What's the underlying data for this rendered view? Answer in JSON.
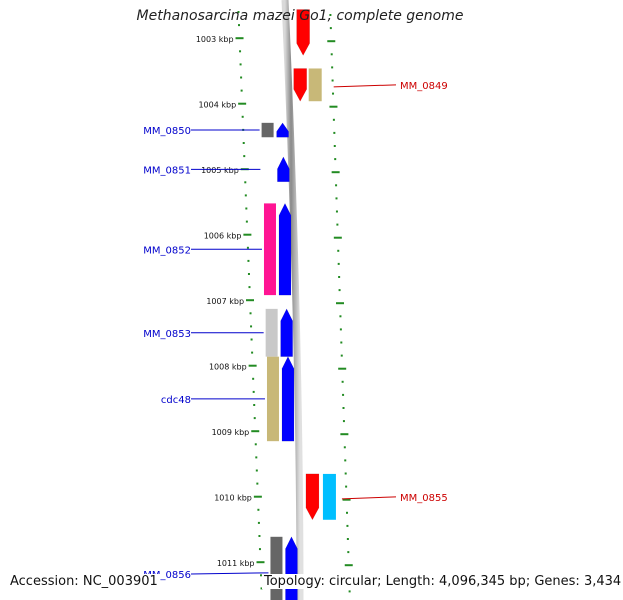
{
  "title": "Methanosarcina mazei Go1, complete genome",
  "footer": {
    "accession_label": "Accession:",
    "accession": "NC_003901",
    "topology_label": "Topology:",
    "topology": "circular",
    "length_label": "Length:",
    "length": "4,096,345 bp",
    "genes_label": "Genes:",
    "genes": "3,434"
  },
  "colors": {
    "forward_orf": "#0000ff",
    "reverse_orf": "#ff0000",
    "reverse_orf_alt": "#00bfff",
    "forward_label": "#0000cc",
    "reverse_label": "#cc0000",
    "tick": "#228b22",
    "backbone": "#8c8c8c",
    "gene_grey": "#666666",
    "gene_pink": "#ff1493",
    "gene_lightgrey": "#c8c8c8",
    "gene_khaki": "#c8b878"
  },
  "ruler": {
    "unit": "kbp",
    "labels": [
      {
        "kbp": 1003,
        "text": "1003 kbp"
      },
      {
        "kbp": 1004,
        "text": "1004 kbp"
      },
      {
        "kbp": 1005,
        "text": "1005 kbp"
      },
      {
        "kbp": 1006,
        "text": "1006 kbp"
      },
      {
        "kbp": 1007,
        "text": "1007 kbp"
      },
      {
        "kbp": 1008,
        "text": "1008 kbp"
      },
      {
        "kbp": 1009,
        "text": "1009 kbp"
      },
      {
        "kbp": 1010,
        "text": "1010 kbp"
      },
      {
        "kbp": 1011,
        "text": "1011 kbp"
      }
    ]
  },
  "genes": [
    {
      "name": "MM_0849",
      "strand": "-",
      "start": 1002.55,
      "end": 1003.25,
      "lane_color": "reverse_orf",
      "gene_color": null,
      "labeled": false
    },
    {
      "name": "MM_0849",
      "strand": "-",
      "start": 1003.45,
      "end": 1003.95,
      "lane_color": "reverse_orf",
      "gene_color": "gene_khaki",
      "labeled": true
    },
    {
      "name": "MM_0850",
      "strand": "+",
      "start": 1004.28,
      "end": 1004.5,
      "lane_color": "forward_orf",
      "gene_color": "gene_grey",
      "labeled": true
    },
    {
      "name": "MM_0851",
      "strand": "+",
      "start": 1004.8,
      "end": 1005.18,
      "lane_color": "forward_orf",
      "gene_color": null,
      "labeled": true
    },
    {
      "name": "MM_0852",
      "strand": "+",
      "start": 1005.51,
      "end": 1006.91,
      "lane_color": "forward_orf",
      "gene_color": "gene_pink",
      "labeled": true
    },
    {
      "name": "MM_0853",
      "strand": "+",
      "start": 1007.12,
      "end": 1007.85,
      "lane_color": "forward_orf",
      "gene_color": "gene_lightgrey",
      "labeled": true
    },
    {
      "name": "cdc48",
      "strand": "+",
      "start": 1007.85,
      "end": 1009.14,
      "lane_color": "forward_orf",
      "gene_color": "gene_khaki",
      "labeled": true
    },
    {
      "name": "MM_0855",
      "strand": "-",
      "start": 1009.64,
      "end": 1010.34,
      "lane_color": "reverse_orf",
      "gene_color": "reverse_orf_alt",
      "labeled": true
    },
    {
      "name": "MM_0856",
      "strand": "+",
      "start": 1010.6,
      "end": 1011.7,
      "lane_color": "forward_orf",
      "gene_color": "gene_grey",
      "labeled": true
    }
  ]
}
